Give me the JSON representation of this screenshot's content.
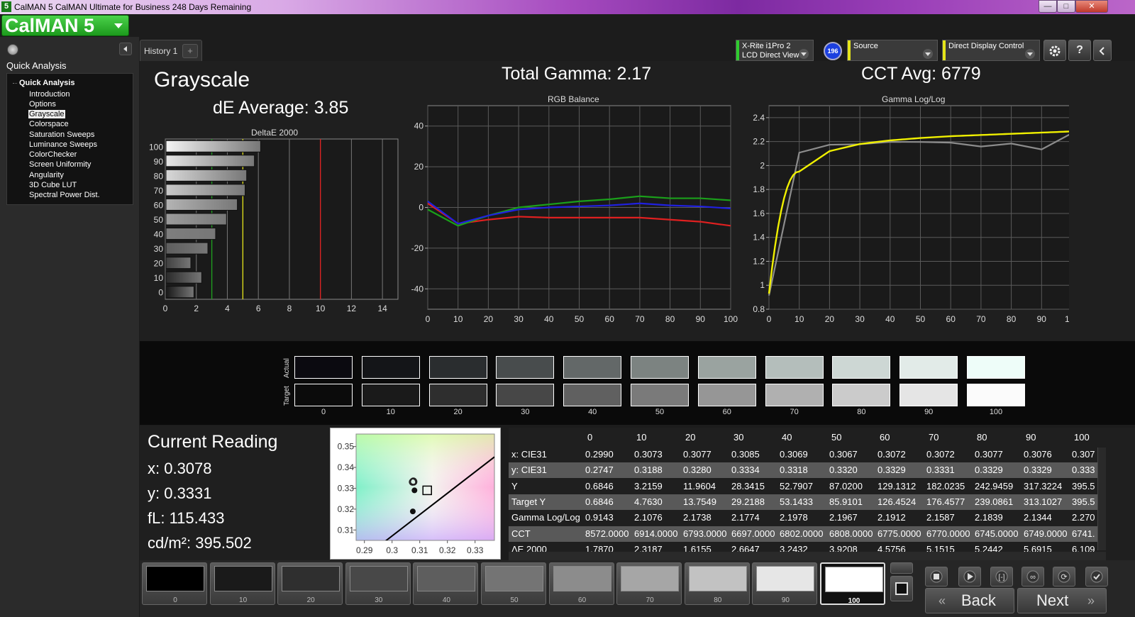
{
  "window": {
    "title": "CalMAN 5 CalMAN Ultimate for Business 248 Days Remaining",
    "app_icon": "5"
  },
  "logo": {
    "text": "CalMAN 5"
  },
  "left_panel": {
    "title": "Quick Analysis",
    "tree_header": "Quick Analysis",
    "items": [
      "Introduction",
      "Options",
      "Grayscale",
      "Colorspace",
      "Saturation Sweeps",
      "Luminance Sweeps",
      "ColorChecker",
      "Screen Uniformity",
      "Angularity",
      "3D Cube LUT",
      "Spectral Power Dist."
    ],
    "selected": "Grayscale"
  },
  "tabs": {
    "history": "History 1",
    "add": "+"
  },
  "controls": {
    "meter_line1": "X-Rite i1Pro 2",
    "meter_line2": "LCD Direct View",
    "meter_badge": "196",
    "source": "Source",
    "display": "Direct Display Control",
    "settings_icon": "gear-icon",
    "help_label": "?",
    "collapse_icon": "chevron-left-icon"
  },
  "summary": {
    "page_title": "Grayscale",
    "de_average": "dE Average: 3.85",
    "total_gamma": "Total Gamma: 2.17",
    "cct_avg": "CCT Avg: 6779"
  },
  "chart_data": [
    {
      "type": "bar",
      "orientation": "horizontal",
      "title": "DeltaE 2000",
      "categories": [
        "100",
        "90",
        "80",
        "70",
        "60",
        "50",
        "40",
        "30",
        "20",
        "10",
        "0"
      ],
      "values": [
        6.1,
        5.7,
        5.2,
        5.1,
        4.6,
        3.9,
        3.2,
        2.7,
        1.6,
        2.3,
        1.8
      ],
      "xlim": [
        0,
        15
      ],
      "xticks": [
        "0",
        "2",
        "4",
        "6",
        "8",
        "10",
        "12",
        "14"
      ],
      "reference_lines": [
        {
          "value": 3,
          "color": "#1fa31f"
        },
        {
          "value": 5,
          "color": "#e5e51a"
        },
        {
          "value": 10,
          "color": "#e02020"
        }
      ]
    },
    {
      "type": "line",
      "title": "RGB Balance",
      "x": [
        0,
        10,
        20,
        30,
        40,
        50,
        60,
        70,
        80,
        90,
        100
      ],
      "ylim": [
        -50,
        50
      ],
      "xticks": [
        "0",
        "10",
        "20",
        "30",
        "40",
        "50",
        "60",
        "70",
        "80",
        "90",
        "100"
      ],
      "yticks": [
        "40",
        "20",
        "0",
        "-20",
        "-40"
      ],
      "series": [
        {
          "color": "#e02020",
          "values": [
            2,
            -8,
            -6,
            -4.5,
            -5,
            -5,
            -5,
            -5,
            -6,
            -7,
            -9
          ]
        },
        {
          "color": "#1aa01a",
          "values": [
            -1,
            -9,
            -4,
            0,
            1.5,
            3,
            4,
            5.5,
            4.5,
            4.5,
            3.5
          ]
        },
        {
          "color": "#2020e0",
          "values": [
            3,
            -8,
            -4,
            -1,
            0,
            0.5,
            1,
            2,
            1,
            0.5,
            -0.5
          ]
        }
      ]
    },
    {
      "type": "line",
      "title": "Gamma Log/Log",
      "x": [
        0,
        10,
        20,
        30,
        40,
        50,
        60,
        70,
        80,
        90,
        100
      ],
      "ylim": [
        0.8,
        2.5
      ],
      "xticks": [
        "0",
        "10",
        "20",
        "30",
        "40",
        "50",
        "60",
        "70",
        "80",
        "90",
        "100"
      ],
      "yticks": [
        "2.4",
        "2.2",
        "2",
        "1.8",
        "1.6",
        "1.4",
        "1.2",
        "1",
        "0.8"
      ],
      "series": [
        {
          "color": "#8c8c8c",
          "values": [
            0.9143,
            2.1076,
            2.1738,
            2.1774,
            2.1978,
            2.1967,
            2.1912,
            2.1587,
            2.1839,
            2.1344,
            2.27
          ]
        },
        {
          "color": "#f0f000",
          "values": [
            0.93,
            1.95,
            2.12,
            2.18,
            2.21,
            2.23,
            2.245,
            2.255,
            2.265,
            2.275,
            2.285
          ]
        }
      ]
    },
    {
      "type": "scatter",
      "title": "",
      "xlim": [
        0.287,
        0.337
      ],
      "ylim": [
        0.305,
        0.356
      ],
      "xticks": [
        "0.29",
        "0.3",
        "0.31",
        "0.32",
        "0.33"
      ],
      "yticks": [
        "0.35",
        "0.34",
        "0.33",
        "0.32",
        "0.31"
      ],
      "points": [
        {
          "x": 0.3077,
          "y": 0.3334,
          "marker": "ring"
        },
        {
          "x": 0.3074,
          "y": 0.333,
          "marker": "ring"
        },
        {
          "x": 0.3078,
          "y": 0.3331,
          "marker": "ring"
        },
        {
          "x": 0.3081,
          "y": 0.329,
          "marker": "dot"
        },
        {
          "x": 0.3075,
          "y": 0.3189,
          "marker": "dot"
        },
        {
          "x": 0.3127,
          "y": 0.329,
          "marker": "square"
        }
      ],
      "line": {
        "x": [
          0.294,
          0.337
        ],
        "y": [
          0.301,
          0.345
        ]
      }
    }
  ],
  "swatches": {
    "actual_label": "Actual",
    "target_label": "Target",
    "steps": [
      "0",
      "10",
      "20",
      "30",
      "40",
      "50",
      "60",
      "70",
      "80",
      "90",
      "100"
    ],
    "actual_colors": [
      "#0b0a10",
      "#141518",
      "#2a2d2f",
      "#484c4d",
      "#636868",
      "#7c8381",
      "#9aa3a0",
      "#b4bebb",
      "#cdd7d4",
      "#e2ebe8",
      "#eefdf9"
    ],
    "target_colors": [
      "#0b0b0b",
      "#1a1a1a",
      "#2e2e2e",
      "#474747",
      "#606060",
      "#7a7a7a",
      "#969696",
      "#b0b0b0",
      "#cbcbcb",
      "#e5e5e5",
      "#fbfbfb"
    ]
  },
  "current_reading": {
    "title": "Current Reading",
    "x": "x: 0.3078",
    "y": "y: 0.3331",
    "fl": "fL: 115.433",
    "cdm2": "cd/m²: 395.502"
  },
  "data_table": {
    "columns": [
      "0",
      "10",
      "20",
      "30",
      "40",
      "50",
      "60",
      "70",
      "80",
      "90",
      "100"
    ],
    "rows": [
      {
        "label": "x: CIE31",
        "values": [
          "0.2990",
          "0.3073",
          "0.3077",
          "0.3085",
          "0.3069",
          "0.3067",
          "0.3072",
          "0.3072",
          "0.3077",
          "0.3076",
          "0.307"
        ]
      },
      {
        "label": "y: CIE31",
        "values": [
          "0.2747",
          "0.3188",
          "0.3280",
          "0.3334",
          "0.3318",
          "0.3320",
          "0.3329",
          "0.3331",
          "0.3329",
          "0.3329",
          "0.333"
        ]
      },
      {
        "label": "Y",
        "values": [
          "0.6846",
          "3.2159",
          "11.9604",
          "28.3415",
          "52.7907",
          "87.0200",
          "129.1312",
          "182.0235",
          "242.9459",
          "317.3224",
          "395.5"
        ]
      },
      {
        "label": "Target Y",
        "values": [
          "0.6846",
          "4.7630",
          "13.7549",
          "29.2188",
          "53.1433",
          "85.9101",
          "126.4524",
          "176.4577",
          "239.0861",
          "313.1027",
          "395.5"
        ]
      },
      {
        "label": "Gamma Log/Log",
        "values": [
          "0.9143",
          "2.1076",
          "2.1738",
          "2.1774",
          "2.1978",
          "2.1967",
          "2.1912",
          "2.1587",
          "2.1839",
          "2.1344",
          "2.270"
        ]
      },
      {
        "label": "CCT",
        "values": [
          "8572.0000",
          "6914.0000",
          "6793.0000",
          "6697.0000",
          "6802.0000",
          "6808.0000",
          "6775.0000",
          "6770.0000",
          "6745.0000",
          "6749.0000",
          "6741."
        ]
      },
      {
        "label": "ΔE 2000",
        "values": [
          "1.7870",
          "2.3187",
          "1.6155",
          "2.6647",
          "3.2432",
          "3.9208",
          "4.5756",
          "5.1515",
          "5.2442",
          "5.6915",
          "6.109"
        ]
      }
    ]
  },
  "bottom_bar": {
    "steps": [
      "0",
      "10",
      "20",
      "30",
      "40",
      "50",
      "60",
      "70",
      "80",
      "90",
      "100"
    ],
    "step_colors": [
      "#000000",
      "#1a1a1a",
      "#2f2f2f",
      "#484848",
      "#5e5e5e",
      "#747474",
      "#8c8c8c",
      "#a6a6a6",
      "#c2c2c2",
      "#e6e6e6",
      "#ffffff"
    ],
    "selected": "100",
    "back_label": "Back",
    "next_label": "Next"
  }
}
